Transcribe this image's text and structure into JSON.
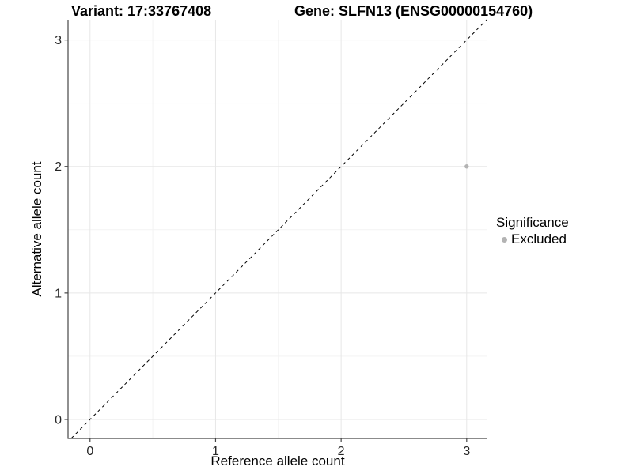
{
  "title": {
    "variant": "Variant: 17:33767408",
    "gene": "Gene: SLFN13 (ENSG00000154760)"
  },
  "chart_data": {
    "type": "scatter",
    "title_left": "Variant: 17:33767408",
    "title_right": "Gene: SLFN13 (ENSG00000154760)",
    "xlabel": "Reference allele count",
    "ylabel": "Alternative allele count",
    "xlim": [
      -0.175,
      3.165
    ],
    "ylim": [
      -0.15,
      3.16
    ],
    "x_major_ticks": [
      0,
      1,
      2,
      3
    ],
    "y_major_ticks": [
      0,
      1,
      2,
      3
    ],
    "x_minor_ticks": [
      0.5,
      1.5,
      2.5
    ],
    "y_minor_ticks": [
      0.5,
      1.5,
      2.5
    ],
    "grid": "on",
    "identity_line": {
      "style": "dashed",
      "equation": "y = x",
      "color": "#000000"
    },
    "series": [
      {
        "name": "Excluded",
        "color": "#b3b3b3",
        "points": [
          {
            "x": 3,
            "y": 2
          }
        ]
      }
    ],
    "legend": {
      "title": "Significance",
      "position": "right",
      "entries": [
        {
          "label": "Excluded",
          "color": "#b3b3b3",
          "marker": "circle"
        }
      ]
    }
  },
  "colors": {
    "background": "#ffffff",
    "axis_line": "#464646",
    "tick_mark": "#464646",
    "major_grid": "#e7e7e7",
    "minor_grid": "#f3f3f3",
    "tick_label": "#262626",
    "axis_title": "#000000",
    "title_text": "#000000"
  }
}
